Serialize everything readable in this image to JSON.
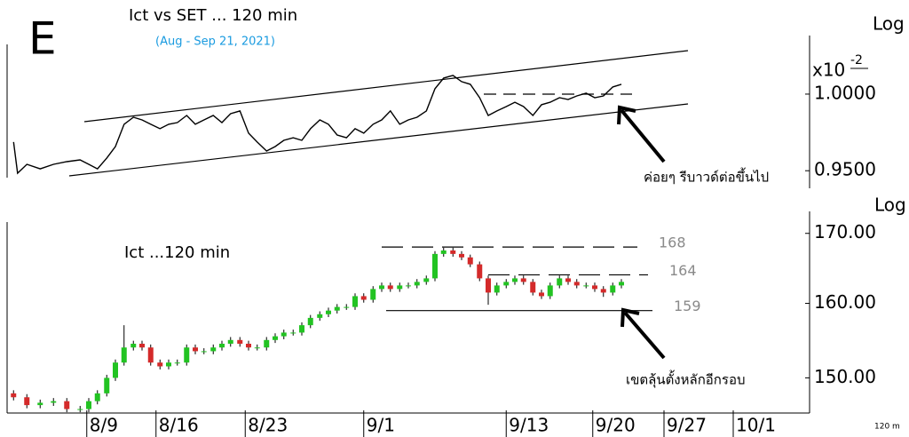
{
  "label": "E",
  "timeframe": "120 m",
  "chart_data": [
    {
      "type": "line",
      "title": "Ict vs SET ... 120 min",
      "subtitle": "(Aug - Sep 21, 2021)",
      "scale_label": "Log",
      "multiplier": "x10",
      "exponent": "-2",
      "log_scale": true,
      "color": "#000000",
      "xlim": [
        0,
        120
      ],
      "ylim": [
        0.94,
        1.04
      ],
      "yticks": [
        {
          "value": 1,
          "label": "1.0000"
        },
        {
          "value": 0.95,
          "label": "0.9500"
        }
      ],
      "annotation": "ค่อยๆ รีบาวด์ต่อขึ้นไป",
      "x": [
        0.7,
        1.3,
        2.7,
        4.7,
        6.7,
        8.7,
        10.7,
        12,
        13.3,
        14.7,
        16,
        17.3,
        18.7,
        20,
        21.3,
        22.7,
        24,
        25.3,
        26.7,
        28,
        29.3,
        30.7,
        32,
        33.3,
        34.7,
        36,
        37.3,
        38.7,
        40,
        41.3,
        42.7,
        44,
        45.3,
        46.7,
        48,
        49.3,
        50.7,
        52,
        53.3,
        54.7,
        56,
        57.3,
        58.7,
        60,
        61.3,
        62.7,
        64,
        65.3,
        66.7,
        68,
        69.3,
        70.7,
        72,
        73.3,
        74.7,
        76,
        77.3,
        78.7,
        80,
        81.3,
        82.7,
        84,
        85.3,
        86.7,
        88,
        89.3,
        90.7,
        92
      ],
      "values": [
        0.9684,
        0.9484,
        0.9541,
        0.9512,
        0.9541,
        0.9558,
        0.9569,
        0.9541,
        0.9512,
        0.9581,
        0.9655,
        0.98,
        0.9846,
        0.9829,
        0.98,
        0.9771,
        0.98,
        0.9811,
        0.9858,
        0.98,
        0.9829,
        0.9858,
        0.9811,
        0.987,
        0.9888,
        0.9742,
        0.9684,
        0.9626,
        0.9655,
        0.9695,
        0.9712,
        0.9695,
        0.9771,
        0.9829,
        0.98,
        0.973,
        0.9712,
        0.9771,
        0.9742,
        0.98,
        0.9829,
        0.9888,
        0.98,
        0.9829,
        0.9846,
        0.9888,
        1.0036,
        1.0108,
        1.0126,
        1.0084,
        1.0066,
        0.9976,
        0.9858,
        0.9888,
        0.9917,
        0.9946,
        0.9917,
        0.9858,
        0.9929,
        0.9946,
        0.9976,
        0.9964,
        0.9988,
        1.0006,
        0.9976,
        0.9988,
        1.0048,
        1.0066
      ]
    },
    {
      "type": "candlestick",
      "title": "Ict ...120 min",
      "scale_label": "Log",
      "log_scale": true,
      "up_color": "#22c322",
      "down_color": "#d42a2a",
      "xlim": [
        0,
        120
      ],
      "ylim": [
        145.5,
        173
      ],
      "yticks": [
        {
          "value": 170,
          "label": "170.00"
        },
        {
          "value": 160,
          "label": "160.00"
        },
        {
          "value": 150,
          "label": "150.00"
        }
      ],
      "xticks": [
        {
          "value": 11.7,
          "label": "8/9"
        },
        {
          "value": 22.1,
          "label": "8/16"
        },
        {
          "value": 35.5,
          "label": "8/23"
        },
        {
          "value": 53.3,
          "label": "9/1"
        },
        {
          "value": 74.7,
          "label": "9/13"
        },
        {
          "value": 87.7,
          "label": "9/20"
        },
        {
          "value": 98.4,
          "label": "9/27"
        },
        {
          "value": 108.8,
          "label": "10/1"
        }
      ],
      "levels": [
        {
          "value": 168,
          "style": "dashed"
        },
        {
          "value": 164,
          "style": "dashed"
        },
        {
          "value": 159,
          "style": "solid"
        }
      ],
      "annotation": "เขตลุ้นตั้งหลักอีกรอบ",
      "x": [
        0.7,
        2.7,
        4.7,
        6.7,
        8.7,
        10.7,
        12,
        13.3,
        14.7,
        16,
        17.3,
        18.7,
        20,
        21.3,
        22.7,
        24,
        25.3,
        26.7,
        28,
        29.3,
        30.7,
        32,
        33.3,
        34.7,
        36,
        37.3,
        38.7,
        40,
        41.3,
        42.7,
        44,
        45.3,
        46.7,
        48,
        49.3,
        50.7,
        52,
        53.3,
        54.7,
        56,
        57.3,
        58.7,
        60,
        61.3,
        62.7,
        64,
        65.3,
        66.7,
        68,
        69.3,
        70.7,
        72,
        73.3,
        74.7,
        76,
        77.3,
        78.7,
        80,
        81.3,
        82.7,
        84,
        85.3,
        86.7,
        88,
        89.3,
        90.7,
        92
      ],
      "open": [
        148,
        147.5,
        146.5,
        146.8,
        147,
        146,
        146,
        147,
        148,
        150,
        152,
        154,
        154.5,
        154,
        152,
        151.5,
        152,
        152,
        154,
        153.5,
        153.5,
        154,
        154.5,
        155,
        154.5,
        154,
        154,
        155,
        155.5,
        156,
        156,
        157,
        158,
        158.5,
        159,
        159.5,
        159.5,
        161,
        160.5,
        162,
        162.5,
        162,
        162.5,
        162.5,
        163,
        163.5,
        167,
        167.5,
        167,
        166.5,
        165.5,
        163.5,
        161.5,
        162.5,
        163,
        163.5,
        163,
        161.5,
        161,
        162.5,
        163.5,
        163,
        162.5,
        162.5,
        162,
        161.5,
        162.5
      ],
      "high": [
        148.4,
        147.9,
        147.2,
        147.4,
        147.4,
        146.4,
        147.4,
        148.4,
        150.4,
        152.4,
        157,
        154.9,
        154.9,
        154.4,
        152.4,
        152.4,
        152.4,
        154.4,
        154.4,
        153.9,
        154.4,
        154.9,
        155.4,
        155.4,
        154.9,
        154.4,
        155.4,
        155.9,
        156.4,
        156.4,
        157.4,
        158.4,
        158.9,
        159.4,
        159.9,
        159.9,
        161.4,
        161.4,
        162.4,
        162.9,
        162.9,
        162.9,
        162.9,
        163.4,
        163.9,
        167.4,
        167.9,
        167.9,
        167.4,
        166.9,
        165.9,
        163.9,
        162.9,
        163.4,
        163.9,
        163.9,
        163.4,
        161.9,
        162.9,
        163.9,
        163.9,
        163.4,
        162.9,
        162.9,
        162.4,
        162.9,
        163.4
      ],
      "low": [
        147.1,
        146.1,
        146.1,
        146.4,
        145.6,
        145.6,
        145.6,
        146.6,
        147.6,
        149.6,
        151.6,
        153.6,
        153.6,
        151.6,
        151.1,
        151.1,
        151.6,
        151.6,
        153.1,
        153.1,
        153.1,
        153.6,
        154.1,
        154.1,
        153.6,
        153.6,
        153.6,
        154.6,
        155.1,
        155.6,
        155.6,
        156.6,
        157.6,
        158.1,
        158.6,
        159.1,
        159.1,
        160.1,
        160.1,
        161.6,
        161.6,
        161.6,
        162.1,
        162.1,
        162.6,
        163.1,
        166.6,
        166.6,
        166.1,
        165.1,
        163.1,
        159.8,
        161.1,
        162.1,
        162.6,
        162.6,
        161.1,
        160.6,
        160.6,
        162.1,
        162.6,
        162.1,
        162.1,
        161.6,
        160.9,
        161.1,
        162.1
      ],
      "close": [
        147.5,
        146.5,
        146.8,
        147,
        146,
        146,
        147,
        148,
        150,
        152,
        154,
        154.5,
        154,
        152,
        151.5,
        152,
        152,
        154,
        153.5,
        153.5,
        154,
        154.5,
        155,
        154.5,
        154,
        154,
        155,
        155.5,
        156,
        156,
        157,
        158,
        158.5,
        159,
        159.5,
        159.5,
        161,
        160.5,
        162,
        162.5,
        162,
        162.5,
        162.5,
        163,
        163.5,
        167,
        167.5,
        167,
        166.5,
        165.5,
        163.5,
        161.5,
        162.5,
        163,
        163.5,
        163,
        161.5,
        161,
        162.5,
        163.5,
        163,
        162.5,
        162.5,
        162,
        161.5,
        162.5,
        163
      ]
    }
  ]
}
